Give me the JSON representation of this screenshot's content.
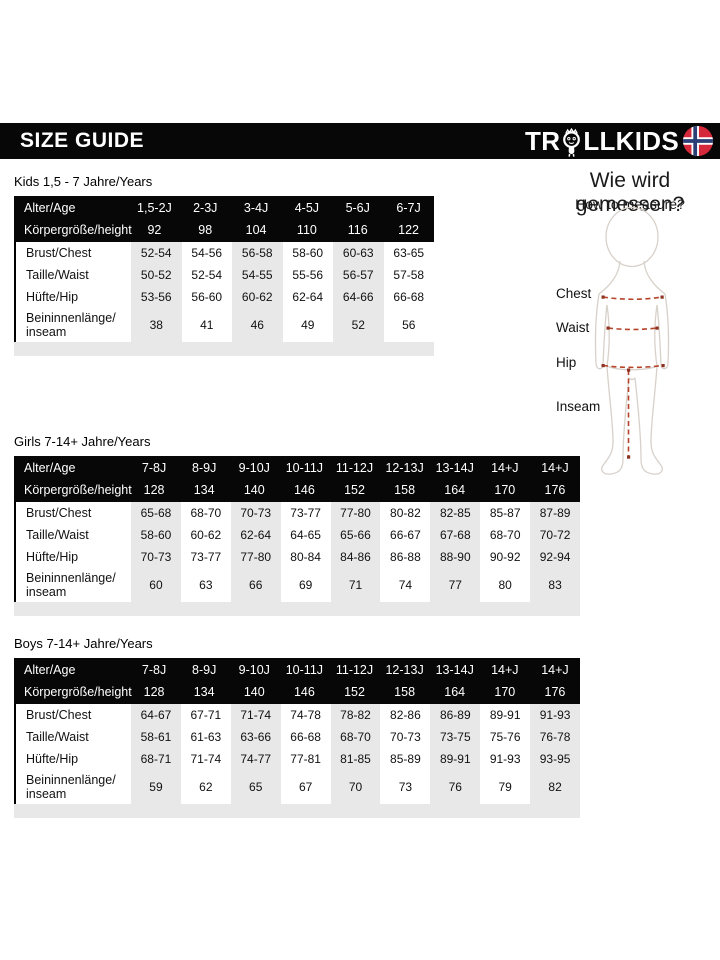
{
  "header": {
    "title": "SIZE GUIDE",
    "brand_pre": "TR",
    "brand_post": "LLKIDS",
    "flag_icon": "norway-flag-icon",
    "troll_icon": "troll-face-icon"
  },
  "measure": {
    "title": "Wie wird gemessen?",
    "subtitle": "How to measure?",
    "labels": [
      "Chest",
      "Waist",
      "Hip",
      "Inseam"
    ]
  },
  "tables": [
    {
      "title": "Kids 1,5 - 7 Jahre/Years",
      "header_rows": [
        {
          "label": "Alter/Age",
          "values": [
            "1,5-2J",
            "2-3J",
            "3-4J",
            "4-5J",
            "5-6J",
            "6-7J"
          ]
        },
        {
          "label": "Körpergröße/height",
          "values": [
            "92",
            "98",
            "104",
            "110",
            "116",
            "122"
          ]
        }
      ],
      "rows": [
        {
          "label": "Brust/Chest",
          "values": [
            "52-54",
            "54-56",
            "56-58",
            "58-60",
            "60-63",
            "63-65"
          ]
        },
        {
          "label": "Taille/Waist",
          "values": [
            "50-52",
            "52-54",
            "54-55",
            "55-56",
            "56-57",
            "57-58"
          ]
        },
        {
          "label": "Hüfte/Hip",
          "values": [
            "53-56",
            "56-60",
            "60-62",
            "62-64",
            "64-66",
            "66-68"
          ]
        },
        {
          "label": "Beininnenlänge/ inseam",
          "values": [
            "38",
            "41",
            "46",
            "49",
            "52",
            "56"
          ]
        }
      ]
    },
    {
      "title": "Girls 7-14+ Jahre/Years",
      "header_rows": [
        {
          "label": "Alter/Age",
          "values": [
            "7-8J",
            "8-9J",
            "9-10J",
            "10-11J",
            "11-12J",
            "12-13J",
            "13-14J",
            "14+J",
            "14+J"
          ]
        },
        {
          "label": "Körpergröße/height",
          "values": [
            "128",
            "134",
            "140",
            "146",
            "152",
            "158",
            "164",
            "170",
            "176"
          ]
        }
      ],
      "rows": [
        {
          "label": "Brust/Chest",
          "values": [
            "65-68",
            "68-70",
            "70-73",
            "73-77",
            "77-80",
            "80-82",
            "82-85",
            "85-87",
            "87-89"
          ]
        },
        {
          "label": "Taille/Waist",
          "values": [
            "58-60",
            "60-62",
            "62-64",
            "64-65",
            "65-66",
            "66-67",
            "67-68",
            "68-70",
            "70-72"
          ]
        },
        {
          "label": "Hüfte/Hip",
          "values": [
            "70-73",
            "73-77",
            "77-80",
            "80-84",
            "84-86",
            "86-88",
            "88-90",
            "90-92",
            "92-94"
          ]
        },
        {
          "label": "Beininnenlänge/ inseam",
          "values": [
            "60",
            "63",
            "66",
            "69",
            "71",
            "74",
            "77",
            "80",
            "83"
          ]
        }
      ]
    },
    {
      "title": "Boys 7-14+ Jahre/Years",
      "header_rows": [
        {
          "label": "Alter/Age",
          "values": [
            "7-8J",
            "8-9J",
            "9-10J",
            "10-11J",
            "11-12J",
            "12-13J",
            "13-14J",
            "14+J",
            "14+J"
          ]
        },
        {
          "label": "Körpergröße/height",
          "values": [
            "128",
            "134",
            "140",
            "146",
            "152",
            "158",
            "164",
            "170",
            "176"
          ]
        }
      ],
      "rows": [
        {
          "label": "Brust/Chest",
          "values": [
            "64-67",
            "67-71",
            "71-74",
            "74-78",
            "78-82",
            "82-86",
            "86-89",
            "89-91",
            "91-93"
          ]
        },
        {
          "label": "Taille/Waist",
          "values": [
            "58-61",
            "61-63",
            "63-66",
            "66-68",
            "68-70",
            "70-73",
            "73-75",
            "75-76",
            "76-78"
          ]
        },
        {
          "label": "Hüfte/Hip",
          "values": [
            "68-71",
            "71-74",
            "74-77",
            "77-81",
            "81-85",
            "85-89",
            "89-91",
            "91-93",
            "93-95"
          ]
        },
        {
          "label": "Beininnenlänge/ inseam",
          "values": [
            "59",
            "62",
            "65",
            "67",
            "70",
            "73",
            "76",
            "79",
            "82"
          ]
        }
      ]
    }
  ],
  "colors": {
    "bar_black": "#070707",
    "column_shade": "#e8e8e8",
    "measure_line_red": "#b5442b",
    "measure_marker_red": "#8e3222",
    "flag_red": "#d5293b",
    "flag_blue": "#2b3f76",
    "figure_outline": "#d8d1ca"
  }
}
